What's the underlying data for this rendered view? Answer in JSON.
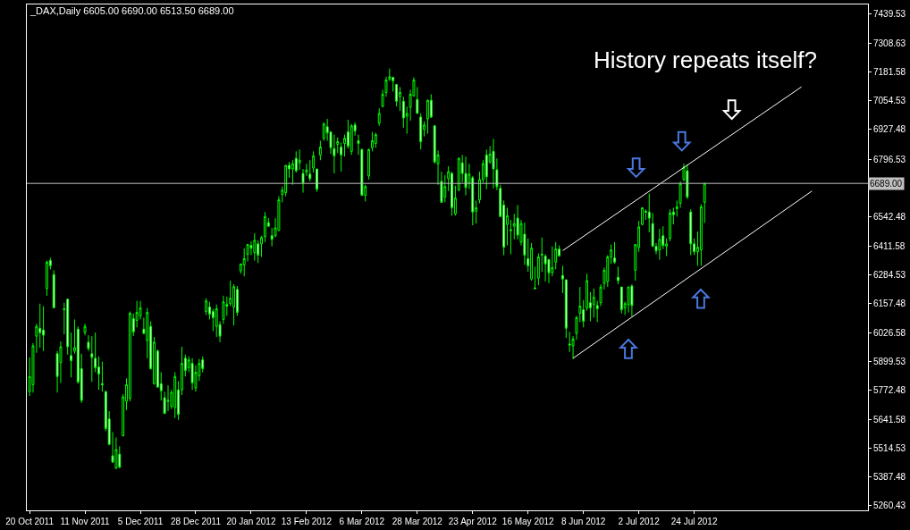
{
  "chart_data": {
    "type": "candlestick",
    "title": "_DAX,Daily 6605.00 6690.00 6513.50 6689.00",
    "annotations": [
      "History repeats itself?"
    ],
    "color": "#00ff00",
    "categories": [
      "20 Oct 2011",
      null,
      null,
      null,
      null,
      null,
      null,
      null,
      null,
      null,
      null,
      null,
      null,
      null,
      null,
      null,
      "11 Nov 2011",
      null,
      null,
      null,
      null,
      null,
      null,
      null,
      null,
      null,
      null,
      null,
      null,
      null,
      null,
      null,
      "5 Dec 2011",
      null,
      null,
      null,
      null,
      null,
      null,
      null,
      null,
      null,
      null,
      null,
      null,
      null,
      null,
      null,
      "28 Dec 2011",
      null,
      null,
      null,
      null,
      null,
      null,
      null,
      null,
      null,
      null,
      null,
      null,
      null,
      null,
      null,
      "20 Jan 2012",
      null,
      null,
      null,
      null,
      null,
      null,
      null,
      null,
      null,
      null,
      null,
      null,
      null,
      null,
      null,
      "13 Feb 2012",
      null,
      null,
      null,
      null,
      null,
      null,
      null,
      null,
      null,
      null,
      null,
      null,
      null,
      null,
      null,
      "6 Mar 2012",
      null,
      null,
      null,
      null,
      null,
      null,
      null,
      null,
      null,
      null,
      null,
      null,
      null,
      null,
      null,
      "28 Mar 2012",
      null,
      null,
      null,
      null,
      null,
      null,
      null,
      null,
      null,
      null,
      null,
      null,
      null,
      null,
      null,
      "23 Apr 2012",
      null,
      null,
      null,
      null,
      null,
      null,
      null,
      null,
      null,
      null,
      null,
      null,
      null,
      null,
      null,
      "16 May 2012",
      null,
      null,
      null,
      null,
      null,
      null,
      null,
      null,
      null,
      null,
      null,
      null,
      null,
      null,
      null,
      "8 Jun 2012",
      null,
      null,
      null,
      null,
      null,
      null,
      null,
      null,
      null,
      null,
      null,
      null,
      null,
      null,
      null,
      "2 Jul 2012",
      null,
      null,
      null,
      null,
      null,
      null,
      null,
      null,
      null,
      null,
      null,
      null,
      null,
      null,
      null,
      "24 Jul 2012",
      null,
      null,
      null,
      null,
      null,
      null,
      null,
      null,
      null,
      null,
      null,
      null,
      null,
      null,
      null,
      null,
      null,
      null,
      null,
      null,
      null,
      null,
      null,
      null,
      null,
      null,
      null,
      null,
      null,
      null,
      null,
      null,
      null,
      null,
      null,
      null,
      null,
      null,
      null,
      null,
      null,
      null,
      null,
      null,
      null,
      null,
      null,
      null,
      null,
      null
    ],
    "ohlc": [
      [
        5766,
        5918,
        5747,
        5833
      ],
      [
        5797,
        5981,
        5762,
        5969
      ],
      [
        6012,
        6067,
        5938,
        6055
      ],
      [
        6047,
        6156,
        5961,
        6027
      ],
      [
        6039,
        6145,
        5946,
        6016
      ],
      [
        6223,
        6347,
        6191,
        6340
      ],
      [
        6347,
        6359,
        6308,
        6324
      ],
      [
        6285,
        6304,
        6137,
        6137
      ],
      [
        5934,
        5946,
        5762,
        5833
      ],
      [
        5895,
        5989,
        5805,
        5965
      ],
      [
        6129,
        6160,
        6020,
        6133
      ],
      [
        6176,
        6176,
        5930,
        5965
      ],
      [
        5926,
        6028,
        5829,
        5903
      ],
      [
        5946,
        6086,
        5934,
        5961
      ],
      [
        6043,
        6055,
        5801,
        5809
      ],
      [
        5868,
        5934,
        5716,
        5727
      ],
      [
        6028,
        6067,
        6016,
        6055
      ],
      [
        5985,
        6016,
        5946,
        5957
      ],
      [
        5934,
        6012,
        5809,
        5918
      ],
      [
        5914,
        6028,
        5852,
        5872
      ],
      [
        5875,
        5922,
        5774,
        5844
      ],
      [
        5801,
        5899,
        5766,
        5797
      ],
      [
        5766,
        5770,
        5591,
        5602
      ],
      [
        5645,
        5680,
        5532,
        5532
      ],
      [
        5482,
        5587,
        5450,
        5454
      ],
      [
        5427,
        5563,
        5423,
        5509
      ],
      [
        5489,
        5524,
        5427,
        5431
      ],
      [
        5571,
        5755,
        5567,
        5743
      ],
      [
        5723,
        5825,
        5685,
        5797
      ],
      [
        5735,
        6121,
        5723,
        6113
      ],
      [
        6090,
        6113,
        6012,
        6031
      ],
      [
        6082,
        6168,
        6051,
        6117
      ],
      [
        6102,
        6168,
        6086,
        6137
      ],
      [
        6043,
        6094,
        6020,
        6024
      ],
      [
        5992,
        6137,
        5914,
        6117
      ],
      [
        6055,
        6078,
        5864,
        5868
      ],
      [
        5801,
        6008,
        5797,
        5985
      ],
      [
        5946,
        5953,
        5786,
        5786
      ],
      [
        5801,
        5852,
        5727,
        5770
      ],
      [
        5739,
        5766,
        5669,
        5669
      ],
      [
        5723,
        5794,
        5680,
        5727
      ],
      [
        5700,
        5774,
        5689,
        5763
      ],
      [
        5696,
        5852,
        5649,
        5833
      ],
      [
        5774,
        5813,
        5641,
        5665
      ],
      [
        5774,
        5965,
        5751,
        5891
      ],
      [
        5914,
        5930,
        5833,
        5860
      ],
      [
        5872,
        5922,
        5852,
        5907
      ],
      [
        5891,
        5914,
        5774,
        5805
      ],
      [
        5782,
        5883,
        5766,
        5852
      ],
      [
        5836,
        5911,
        5813,
        5891
      ],
      [
        5907,
        5922,
        5852,
        5868
      ],
      [
        6121,
        6180,
        6106,
        6168
      ],
      [
        6141,
        6164,
        6086,
        6109
      ],
      [
        6121,
        6133,
        6035,
        6094
      ],
      [
        6055,
        6152,
        6008,
        6133
      ],
      [
        6063,
        6078,
        5985,
        6012
      ],
      [
        6086,
        6191,
        6067,
        6164
      ],
      [
        6152,
        6187,
        6102,
        6145
      ],
      [
        6156,
        6258,
        6145,
        6180
      ],
      [
        6141,
        6242,
        6059,
        6231
      ],
      [
        6219,
        6234,
        6102,
        6117
      ],
      [
        6301,
        6332,
        6289,
        6332
      ],
      [
        6328,
        6402,
        6277,
        6355
      ],
      [
        6375,
        6421,
        6343,
        6418
      ],
      [
        6414,
        6433,
        6371,
        6402
      ],
      [
        6382,
        6468,
        6347,
        6437
      ],
      [
        6421,
        6437,
        6336,
        6371
      ],
      [
        6421,
        6457,
        6363,
        6449
      ],
      [
        6453,
        6562,
        6429,
        6542
      ],
      [
        6515,
        6535,
        6499,
        6499
      ],
      [
        6457,
        6492,
        6410,
        6441
      ],
      [
        6457,
        6535,
        6449,
        6492
      ],
      [
        6480,
        6632,
        6480,
        6616
      ],
      [
        6640,
        6675,
        6605,
        6659
      ],
      [
        6648,
        6769,
        6632,
        6769
      ],
      [
        6769,
        6784,
        6714,
        6753
      ],
      [
        6753,
        6792,
        6683,
        6776
      ],
      [
        6800,
        6831,
        6737,
        6745
      ],
      [
        6780,
        6839,
        6749,
        6792
      ],
      [
        6733,
        6753,
        6648,
        6691
      ],
      [
        6737,
        6776,
        6722,
        6749
      ],
      [
        6730,
        6792,
        6698,
        6710
      ],
      [
        6757,
        6831,
        6737,
        6811
      ],
      [
        6753,
        6753,
        6652,
        6663
      ],
      [
        6815,
        6878,
        6792,
        6850
      ],
      [
        6889,
        6960,
        6878,
        6952
      ],
      [
        6940,
        6975,
        6878,
        6913
      ],
      [
        6917,
        6917,
        6819,
        6847
      ],
      [
        6843,
        6905,
        6733,
        6811
      ],
      [
        6862,
        6893,
        6823,
        6874
      ],
      [
        6850,
        6870,
        6741,
        6815
      ],
      [
        6866,
        6905,
        6808,
        6889
      ],
      [
        6917,
        6971,
        6843,
        6854
      ],
      [
        6831,
        6952,
        6815,
        6944
      ],
      [
        6948,
        6960,
        6901,
        6921
      ],
      [
        6878,
        6905,
        6815,
        6866
      ],
      [
        6839,
        6843,
        6636,
        6636
      ],
      [
        6636,
        6683,
        6609,
        6675
      ],
      [
        6722,
        6843,
        6706,
        6839
      ],
      [
        6847,
        6917,
        6831,
        6878
      ],
      [
        6866,
        6913,
        6847,
        6905
      ],
      [
        6956,
        7022,
        6944,
        6999
      ],
      [
        7030,
        7104,
        7026,
        7084
      ],
      [
        7092,
        7162,
        7073,
        7147
      ],
      [
        7151,
        7198,
        7143,
        7162
      ],
      [
        7159,
        7159,
        7096,
        7143
      ],
      [
        7127,
        7127,
        7030,
        7053
      ],
      [
        7073,
        7116,
        7010,
        7092
      ],
      [
        7053,
        7073,
        6936,
        6979
      ],
      [
        6987,
        7030,
        6909,
        6999
      ],
      [
        7026,
        7104,
        6967,
        7084
      ],
      [
        7077,
        7159,
        7073,
        7147
      ],
      [
        7061,
        7116,
        6999,
        6999
      ],
      [
        6983,
        6999,
        6839,
        6874
      ],
      [
        6928,
        6964,
        6897,
        6948
      ],
      [
        6975,
        7061,
        6909,
        7057
      ],
      [
        7057,
        7084,
        6979,
        6983
      ],
      [
        6944,
        6948,
        6776,
        6784
      ],
      [
        6776,
        6835,
        6683,
        6815
      ],
      [
        6698,
        6741,
        6605,
        6605
      ],
      [
        6628,
        6726,
        6605,
        6675
      ],
      [
        6710,
        6765,
        6655,
        6741
      ],
      [
        6733,
        6741,
        6546,
        6581
      ],
      [
        6554,
        6679,
        6546,
        6624
      ],
      [
        6659,
        6804,
        6655,
        6800
      ],
      [
        6780,
        6815,
        6694,
        6733
      ],
      [
        6733,
        6808,
        6636,
        6671
      ],
      [
        6691,
        6776,
        6663,
        6730
      ],
      [
        6714,
        6722,
        6503,
        6562
      ],
      [
        6566,
        6613,
        6511,
        6581
      ],
      [
        6616,
        6741,
        6601,
        6706
      ],
      [
        6706,
        6792,
        6691,
        6776
      ],
      [
        6815,
        6839,
        6663,
        6718
      ],
      [
        6784,
        6854,
        6776,
        6819
      ],
      [
        6831,
        6886,
        6667,
        6753
      ],
      [
        6749,
        6800,
        6659,
        6675
      ],
      [
        6667,
        6683,
        6542,
        6542
      ],
      [
        6593,
        6613,
        6371,
        6406
      ],
      [
        6507,
        6581,
        6414,
        6546
      ],
      [
        6484,
        6527,
        6375,
        6480
      ],
      [
        6499,
        6554,
        6441,
        6511
      ],
      [
        6535,
        6593,
        6441,
        6460
      ],
      [
        6429,
        6527,
        6414,
        6511
      ],
      [
        6464,
        6515,
        6328,
        6371
      ],
      [
        6355,
        6445,
        6297,
        6324
      ],
      [
        6265,
        6425,
        6258,
        6402
      ],
      [
        6226,
        6320,
        6219,
        6223
      ],
      [
        6269,
        6379,
        6238,
        6363
      ],
      [
        6371,
        6449,
        6297,
        6375
      ],
      [
        6367,
        6375,
        6254,
        6332
      ],
      [
        6351,
        6355,
        6246,
        6293
      ],
      [
        6293,
        6410,
        6277,
        6316
      ],
      [
        6340,
        6429,
        6308,
        6398
      ],
      [
        6398,
        6414,
        6367,
        6367
      ],
      [
        6281,
        6324,
        6203,
        6265
      ],
      [
        6262,
        6262,
        6004,
        6047
      ],
      [
        5977,
        6031,
        5942,
        5973
      ],
      [
        5969,
        6012,
        5911,
        5999
      ],
      [
        6024,
        6102,
        5996,
        6094
      ],
      [
        6113,
        6230,
        6074,
        6145
      ],
      [
        6129,
        6172,
        6051,
        6078
      ],
      [
        6137,
        6289,
        6125,
        6258
      ],
      [
        6160,
        6207,
        6078,
        6137
      ],
      [
        6152,
        6223,
        6094,
        6184
      ],
      [
        6148,
        6168,
        6074,
        6133
      ],
      [
        6160,
        6242,
        6145,
        6230
      ],
      [
        6246,
        6316,
        6219,
        6304
      ],
      [
        6254,
        6371,
        6230,
        6363
      ],
      [
        6363,
        6418,
        6332,
        6394
      ],
      [
        6359,
        6429,
        6332,
        6340
      ],
      [
        6273,
        6320,
        6242,
        6258
      ],
      [
        6230,
        6230,
        6113,
        6129
      ],
      [
        6137,
        6164,
        6106,
        6156
      ],
      [
        6152,
        6230,
        6117,
        6230
      ],
      [
        6234,
        6242,
        6098,
        6148
      ],
      [
        6304,
        6418,
        6258,
        6418
      ],
      [
        6406,
        6523,
        6386,
        6496
      ],
      [
        6507,
        6581,
        6503,
        6581
      ],
      [
        6566,
        6574,
        6527,
        6562
      ],
      [
        6562,
        6644,
        6472,
        6535
      ],
      [
        6511,
        6558,
        6410,
        6410
      ],
      [
        6410,
        6425,
        6375,
        6390
      ],
      [
        6394,
        6488,
        6351,
        6441
      ],
      [
        6457,
        6499,
        6398,
        6414
      ],
      [
        6410,
        6445,
        6367,
        6421
      ],
      [
        6445,
        6574,
        6433,
        6558
      ],
      [
        6562,
        6581,
        6507,
        6550
      ],
      [
        6577,
        6613,
        6542,
        6585
      ],
      [
        6601,
        6698,
        6581,
        6687
      ],
      [
        6706,
        6776,
        6698,
        6761
      ],
      [
        6745,
        6772,
        6620,
        6628
      ],
      [
        6562,
        6574,
        6371,
        6421
      ],
      [
        6421,
        6445,
        6371,
        6386
      ],
      [
        6386,
        6476,
        6324,
        6406
      ],
      [
        6394,
        6597,
        6324,
        6585
      ],
      [
        6605,
        6690,
        6513.5,
        6689
      ],
      null,
      null,
      null,
      null,
      null,
      null,
      null,
      null,
      null,
      null,
      null,
      null,
      null,
      null,
      null,
      null,
      null,
      null,
      null,
      null,
      null,
      null,
      null,
      null,
      null,
      null,
      null,
      null,
      null,
      null,
      null,
      null,
      null,
      null,
      null,
      null,
      null,
      null,
      null,
      null,
      null,
      null,
      null,
      null,
      null,
      null,
      null
    ],
    "series": [
      {
        "type": "line",
        "color": "#ffffff",
        "values": [
          null,
          null,
          null,
          null,
          null,
          null,
          null,
          null,
          null,
          null,
          null,
          null,
          null,
          null,
          null,
          null,
          null,
          null,
          null,
          null,
          null,
          null,
          null,
          null,
          null,
          null,
          null,
          null,
          null,
          null,
          null,
          null,
          null,
          null,
          null,
          null,
          null,
          null,
          null,
          null,
          null,
          null,
          null,
          null,
          null,
          null,
          null,
          null,
          null,
          null,
          null,
          null,
          null,
          null,
          null,
          null,
          null,
          null,
          null,
          null,
          null,
          null,
          null,
          null,
          null,
          null,
          null,
          null,
          null,
          null,
          null,
          null,
          null,
          null,
          null,
          null,
          null,
          null,
          null,
          null,
          null,
          null,
          null,
          null,
          null,
          null,
          null,
          null,
          null,
          null,
          null,
          null,
          null,
          null,
          null,
          null,
          null,
          null,
          null,
          null,
          null,
          null,
          null,
          null,
          null,
          null,
          null,
          null,
          null,
          null,
          null,
          null,
          null,
          null,
          null,
          null,
          null,
          null,
          null,
          null,
          null,
          null,
          null,
          null,
          null,
          null,
          null,
          null,
          null,
          null,
          null,
          null,
          null,
          null,
          null,
          null,
          null,
          null,
          null,
          null,
          null,
          null,
          null,
          null,
          null,
          null,
          null,
          null,
          null,
          null,
          null,
          null,
          null,
          null,
          null,
          null,
          null,
          5914,
          null,
          null,
          null,
          null,
          null,
          null,
          null,
          null,
          null,
          null,
          null,
          null,
          null,
          null,
          null,
          null,
          null,
          null,
          null,
          null,
          null,
          null,
          null,
          null,
          null,
          null,
          null,
          null,
          null,
          null,
          null,
          null,
          null,
          null,
          null,
          null,
          null,
          null,
          null,
          null,
          null,
          null,
          null,
          null,
          null,
          null,
          null,
          null,
          null,
          null,
          null,
          null,
          null,
          null,
          null,
          null,
          null,
          null,
          null,
          null,
          null,
          null,
          null,
          null,
          null,
          null,
          null,
          null,
          6655,
          null,
          null,
          null,
          null,
          null,
          null,
          null,
          null,
          null,
          null,
          null,
          null,
          null,
          null,
          null,
          null
        ]
      },
      {
        "type": "line",
        "color": "#ffffff",
        "values": [
          null,
          null,
          null,
          null,
          null,
          null,
          null,
          null,
          null,
          null,
          null,
          null,
          null,
          null,
          null,
          null,
          null,
          null,
          null,
          null,
          null,
          null,
          null,
          null,
          null,
          null,
          null,
          null,
          null,
          null,
          null,
          null,
          null,
          null,
          null,
          null,
          null,
          null,
          null,
          null,
          null,
          null,
          null,
          null,
          null,
          null,
          null,
          null,
          null,
          null,
          null,
          null,
          null,
          null,
          null,
          null,
          null,
          null,
          null,
          null,
          null,
          null,
          null,
          null,
          null,
          null,
          null,
          null,
          null,
          null,
          null,
          null,
          null,
          null,
          null,
          null,
          null,
          null,
          null,
          null,
          null,
          null,
          null,
          null,
          null,
          null,
          null,
          null,
          null,
          null,
          null,
          null,
          null,
          null,
          null,
          null,
          null,
          null,
          null,
          null,
          null,
          null,
          null,
          null,
          null,
          null,
          null,
          null,
          null,
          null,
          null,
          null,
          null,
          null,
          null,
          null,
          null,
          null,
          null,
          null,
          null,
          null,
          null,
          null,
          null,
          null,
          null,
          null,
          null,
          null,
          null,
          null,
          null,
          null,
          null,
          null,
          null,
          null,
          null,
          null,
          null,
          null,
          null,
          null,
          null,
          null,
          null,
          null,
          null,
          null,
          null,
          null,
          null,
          null,
          6391,
          null,
          null,
          null,
          null,
          null,
          null,
          null,
          null,
          null,
          null,
          null,
          null,
          null,
          null,
          null,
          null,
          null,
          null,
          null,
          null,
          null,
          null,
          null,
          null,
          null,
          null,
          null,
          null,
          null,
          null,
          null,
          null,
          null,
          null,
          null,
          null,
          null,
          null,
          null,
          null,
          null,
          null,
          null,
          null,
          null,
          null,
          null,
          null,
          null,
          null,
          null,
          null,
          null,
          null,
          null,
          null,
          null,
          null,
          null,
          null,
          null,
          null,
          null,
          null,
          null,
          null,
          null,
          null,
          7117,
          null,
          null,
          null,
          null,
          null,
          null,
          null,
          null,
          null,
          null,
          null,
          null,
          null,
          null,
          null,
          null,
          null,
          null,
          null
        ]
      }
    ],
    "ref_lines": [
      {
        "axis": "y",
        "value": 6689,
        "label": "6689.00",
        "color": "#c0c0c0"
      }
    ],
    "ylim": [
      5240,
      7482
    ],
    "yticks": [
      5260.43,
      5387.48,
      5514.53,
      5641.58,
      5772.48,
      5899.53,
      6026.58,
      6157.48,
      6284.53,
      6411.58,
      6542.48,
      6796.53,
      6927.48,
      7054.53,
      7181.58,
      7308.63,
      7439.53
    ]
  }
}
